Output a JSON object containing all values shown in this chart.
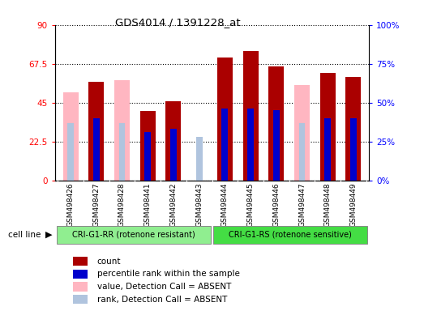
{
  "title": "GDS4014 / 1391228_at",
  "samples": [
    "GSM498426",
    "GSM498427",
    "GSM498428",
    "GSM498441",
    "GSM498442",
    "GSM498443",
    "GSM498444",
    "GSM498445",
    "GSM498446",
    "GSM498447",
    "GSM498448",
    "GSM498449"
  ],
  "count_values": [
    0,
    57,
    0,
    40,
    46,
    0,
    71,
    75,
    66,
    0,
    62,
    60
  ],
  "rank_values": [
    0,
    40,
    0,
    31,
    33,
    0,
    46,
    46,
    45,
    0,
    40,
    40
  ],
  "absent_value_values": [
    51,
    0,
    58,
    0,
    0,
    0,
    0,
    0,
    0,
    55,
    0,
    0
  ],
  "absent_rank_values": [
    37,
    0,
    37,
    0,
    0,
    28,
    0,
    0,
    0,
    37,
    0,
    0
  ],
  "absent_flags": [
    true,
    false,
    true,
    false,
    false,
    true,
    false,
    false,
    false,
    true,
    false,
    false
  ],
  "groups": [
    "CRI-G1-RR (rotenone resistant)",
    "CRI-G1-RS (rotenone sensitive)"
  ],
  "group_colors": [
    "#90EE90",
    "#44DD44"
  ],
  "ylim_left": [
    0,
    90
  ],
  "ylim_right": [
    0,
    100
  ],
  "yticks_left": [
    0,
    22.5,
    45,
    67.5,
    90
  ],
  "yticks_right": [
    0,
    25,
    50,
    75,
    100
  ],
  "ytick_labels_left": [
    "0",
    "22.5",
    "45",
    "67.5",
    "90"
  ],
  "ytick_labels_right": [
    "0%",
    "25%",
    "50%",
    "75%",
    "100%"
  ],
  "bar_width": 0.6,
  "rank_bar_width": 0.25,
  "count_color": "#AA0000",
  "rank_color": "#0000CC",
  "absent_value_color": "#FFB6C1",
  "absent_rank_color": "#B0C4DE",
  "xticklabel_bg": "#d8d8d8"
}
